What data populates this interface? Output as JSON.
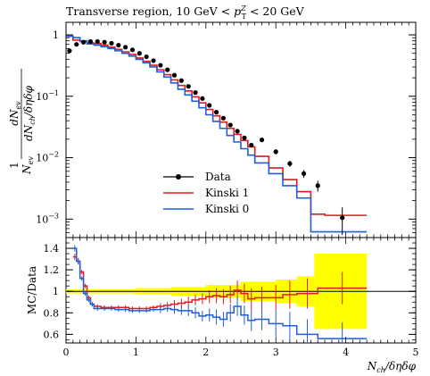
{
  "chart_data": {
    "type": "line",
    "title": "Transverse region, 10 GeV < p_T^Z < 20 GeV",
    "title_parts": {
      "prefix": "Transverse region, 10 GeV < ",
      "pt_symbol": "p",
      "pt_sub": "T",
      "pt_sup": "Z",
      "suffix": " < 20 GeV"
    },
    "xlabel": {
      "main": "N",
      "sub": "ch",
      "rest": "/δηδφ"
    },
    "main_panel": {
      "ylabel": {
        "prefix": "1",
        "fraction_num": "dN",
        "fraction_num_sub": "ev",
        "fraction_den_1": "N",
        "fraction_den_1_sub": "ev",
        "fraction_den_2": "dN",
        "fraction_den_2_sub": "ch",
        "fraction_den_rest": "/δηδφ"
      },
      "yscale": "log",
      "ylim": [
        0.0005,
        1.6
      ],
      "xlim": [
        0,
        5
      ],
      "yticks": [
        {
          "value": 0.001,
          "label": "10",
          "exp": "−3"
        },
        {
          "value": 0.01,
          "label": "10",
          "exp": "−2"
        },
        {
          "value": 0.1,
          "label": "10",
          "exp": "−1"
        },
        {
          "value": 1,
          "label": "1",
          "exp": ""
        }
      ],
      "legend_position": "center-left",
      "series": [
        {
          "name": "Data",
          "style": "points",
          "color": "#000000",
          "x": [
            0.05,
            0.15,
            0.25,
            0.35,
            0.45,
            0.55,
            0.65,
            0.75,
            0.85,
            0.95,
            1.05,
            1.15,
            1.25,
            1.35,
            1.45,
            1.55,
            1.65,
            1.75,
            1.85,
            1.95,
            2.05,
            2.15,
            2.25,
            2.35,
            2.45,
            2.55,
            2.65,
            2.8,
            3.0,
            3.2,
            3.4,
            3.6,
            3.95
          ],
          "y": [
            0.55,
            0.7,
            0.76,
            0.78,
            0.78,
            0.76,
            0.73,
            0.68,
            0.63,
            0.57,
            0.5,
            0.44,
            0.38,
            0.32,
            0.27,
            0.22,
            0.18,
            0.145,
            0.115,
            0.092,
            0.071,
            0.055,
            0.044,
            0.034,
            0.027,
            0.021,
            0.016,
            0.0195,
            0.0125,
            0.008,
            0.0055,
            0.0035,
            0.00105
          ],
          "yerr": [
            0.01,
            0.01,
            0.01,
            0.01,
            0.01,
            0.01,
            0.01,
            0.01,
            0.01,
            0.01,
            0.01,
            0.01,
            0.01,
            0.01,
            0.005,
            0.005,
            0.004,
            0.003,
            0.003,
            0.002,
            0.002,
            0.002,
            0.0015,
            0.0012,
            0.001,
            0.001,
            0.0008,
            0.0015,
            0.0012,
            0.0009,
            0.0008,
            0.0007,
            0.0005
          ]
        },
        {
          "name": "Kinski 1",
          "style": "step",
          "color": "#e41a1c",
          "edges": [
            0,
            0.1,
            0.2,
            0.3,
            0.4,
            0.5,
            0.6,
            0.7,
            0.8,
            0.9,
            1.0,
            1.1,
            1.2,
            1.3,
            1.4,
            1.5,
            1.6,
            1.7,
            1.8,
            1.9,
            2.0,
            2.1,
            2.2,
            2.3,
            2.4,
            2.5,
            2.6,
            2.7,
            2.9,
            3.1,
            3.3,
            3.5,
            3.7,
            4.3
          ],
          "values": [
            0.95,
            0.82,
            0.78,
            0.74,
            0.72,
            0.68,
            0.63,
            0.58,
            0.53,
            0.48,
            0.42,
            0.37,
            0.32,
            0.27,
            0.225,
            0.185,
            0.15,
            0.122,
            0.098,
            0.078,
            0.061,
            0.048,
            0.038,
            0.03,
            0.024,
            0.019,
            0.015,
            0.0105,
            0.0068,
            0.0044,
            0.0028,
            0.0012,
            0.00115
          ]
        },
        {
          "name": "Kinski 0",
          "style": "step",
          "color": "#1f5fd8",
          "edges": [
            0,
            0.1,
            0.2,
            0.3,
            0.4,
            0.5,
            0.6,
            0.7,
            0.8,
            0.9,
            1.0,
            1.1,
            1.2,
            1.3,
            1.4,
            1.5,
            1.6,
            1.7,
            1.8,
            1.9,
            2.0,
            2.1,
            2.2,
            2.3,
            2.4,
            2.5,
            2.6,
            2.7,
            2.9,
            3.1,
            3.3,
            3.5,
            3.7,
            4.3
          ],
          "values": [
            0.95,
            0.9,
            0.8,
            0.71,
            0.68,
            0.64,
            0.6,
            0.55,
            0.5,
            0.45,
            0.4,
            0.35,
            0.3,
            0.25,
            0.205,
            0.165,
            0.13,
            0.105,
            0.083,
            0.065,
            0.05,
            0.039,
            0.03,
            0.023,
            0.018,
            0.014,
            0.011,
            0.0082,
            0.0055,
            0.0035,
            0.0022,
            0.00062,
            0.00062
          ]
        }
      ]
    },
    "ratio_panel": {
      "ylabel": "MC/Data",
      "ylim": [
        0.52,
        1.5
      ],
      "yticks": [
        0.6,
        0.8,
        1.0,
        1.2,
        1.4
      ],
      "xticks": [
        0,
        1,
        2,
        3,
        4,
        5
      ],
      "reference_line": 1.0,
      "uncertainty_band": {
        "color": "#ffff00",
        "edges": [
          0.0,
          0.5,
          1.0,
          1.5,
          2.0,
          2.5,
          3.0,
          3.3,
          3.55,
          4.3
        ],
        "upper": [
          1.02,
          1.02,
          1.03,
          1.04,
          1.06,
          1.09,
          1.11,
          1.14,
          1.35,
          1.35
        ],
        "lower": [
          0.98,
          0.98,
          0.97,
          0.96,
          0.94,
          0.91,
          0.89,
          0.86,
          0.65,
          0.65
        ]
      },
      "series": [
        {
          "name": "Kinski 1",
          "color": "#e41a1c",
          "edges": [
            0.1,
            0.15,
            0.2,
            0.25,
            0.3,
            0.35,
            0.4,
            0.5,
            0.6,
            0.7,
            0.8,
            0.9,
            1.0,
            1.1,
            1.2,
            1.3,
            1.4,
            1.5,
            1.6,
            1.7,
            1.8,
            1.9,
            2.0,
            2.1,
            2.2,
            2.3,
            2.4,
            2.5,
            2.6,
            2.7,
            2.9,
            3.1,
            3.3,
            3.6,
            4.3
          ],
          "values": [
            1.32,
            1.28,
            1.18,
            1.05,
            0.94,
            0.88,
            0.86,
            0.85,
            0.85,
            0.85,
            0.85,
            0.84,
            0.84,
            0.84,
            0.85,
            0.86,
            0.87,
            0.88,
            0.89,
            0.9,
            0.92,
            0.93,
            0.95,
            0.96,
            0.95,
            0.97,
            1.01,
            0.98,
            0.93,
            0.94,
            0.94,
            0.97,
            0.98,
            1.03
          ],
          "err": [
            0.03,
            0.03,
            0.02,
            0.02,
            0.02,
            0.02,
            0.02,
            0.02,
            0.02,
            0.02,
            0.02,
            0.02,
            0.02,
            0.02,
            0.02,
            0.03,
            0.03,
            0.04,
            0.04,
            0.05,
            0.05,
            0.05,
            0.06,
            0.07,
            0.07,
            0.08,
            0.09,
            0.09,
            0.1,
            0.1,
            0.12,
            0.13,
            0.14,
            0.15
          ]
        },
        {
          "name": "Kinski 0",
          "color": "#1f5fd8",
          "edges": [
            0.1,
            0.15,
            0.2,
            0.25,
            0.3,
            0.35,
            0.4,
            0.5,
            0.6,
            0.7,
            0.8,
            0.9,
            1.0,
            1.1,
            1.2,
            1.3,
            1.4,
            1.5,
            1.6,
            1.7,
            1.8,
            1.9,
            2.0,
            2.1,
            2.2,
            2.3,
            2.4,
            2.5,
            2.6,
            2.7,
            2.9,
            3.1,
            3.3,
            3.6,
            4.3
          ],
          "values": [
            1.4,
            1.28,
            1.12,
            0.98,
            0.92,
            0.88,
            0.84,
            0.84,
            0.84,
            0.83,
            0.83,
            0.82,
            0.82,
            0.82,
            0.83,
            0.83,
            0.84,
            0.83,
            0.82,
            0.82,
            0.8,
            0.77,
            0.78,
            0.76,
            0.74,
            0.8,
            0.86,
            0.78,
            0.73,
            0.74,
            0.7,
            0.68,
            0.6,
            0.56
          ],
          "err": [
            0.03,
            0.03,
            0.02,
            0.02,
            0.02,
            0.02,
            0.02,
            0.02,
            0.02,
            0.02,
            0.02,
            0.02,
            0.02,
            0.02,
            0.02,
            0.03,
            0.03,
            0.04,
            0.04,
            0.05,
            0.05,
            0.05,
            0.06,
            0.07,
            0.07,
            0.08,
            0.09,
            0.09,
            0.1,
            0.1,
            0.12,
            0.13,
            0.14,
            0.15
          ]
        }
      ]
    }
  }
}
